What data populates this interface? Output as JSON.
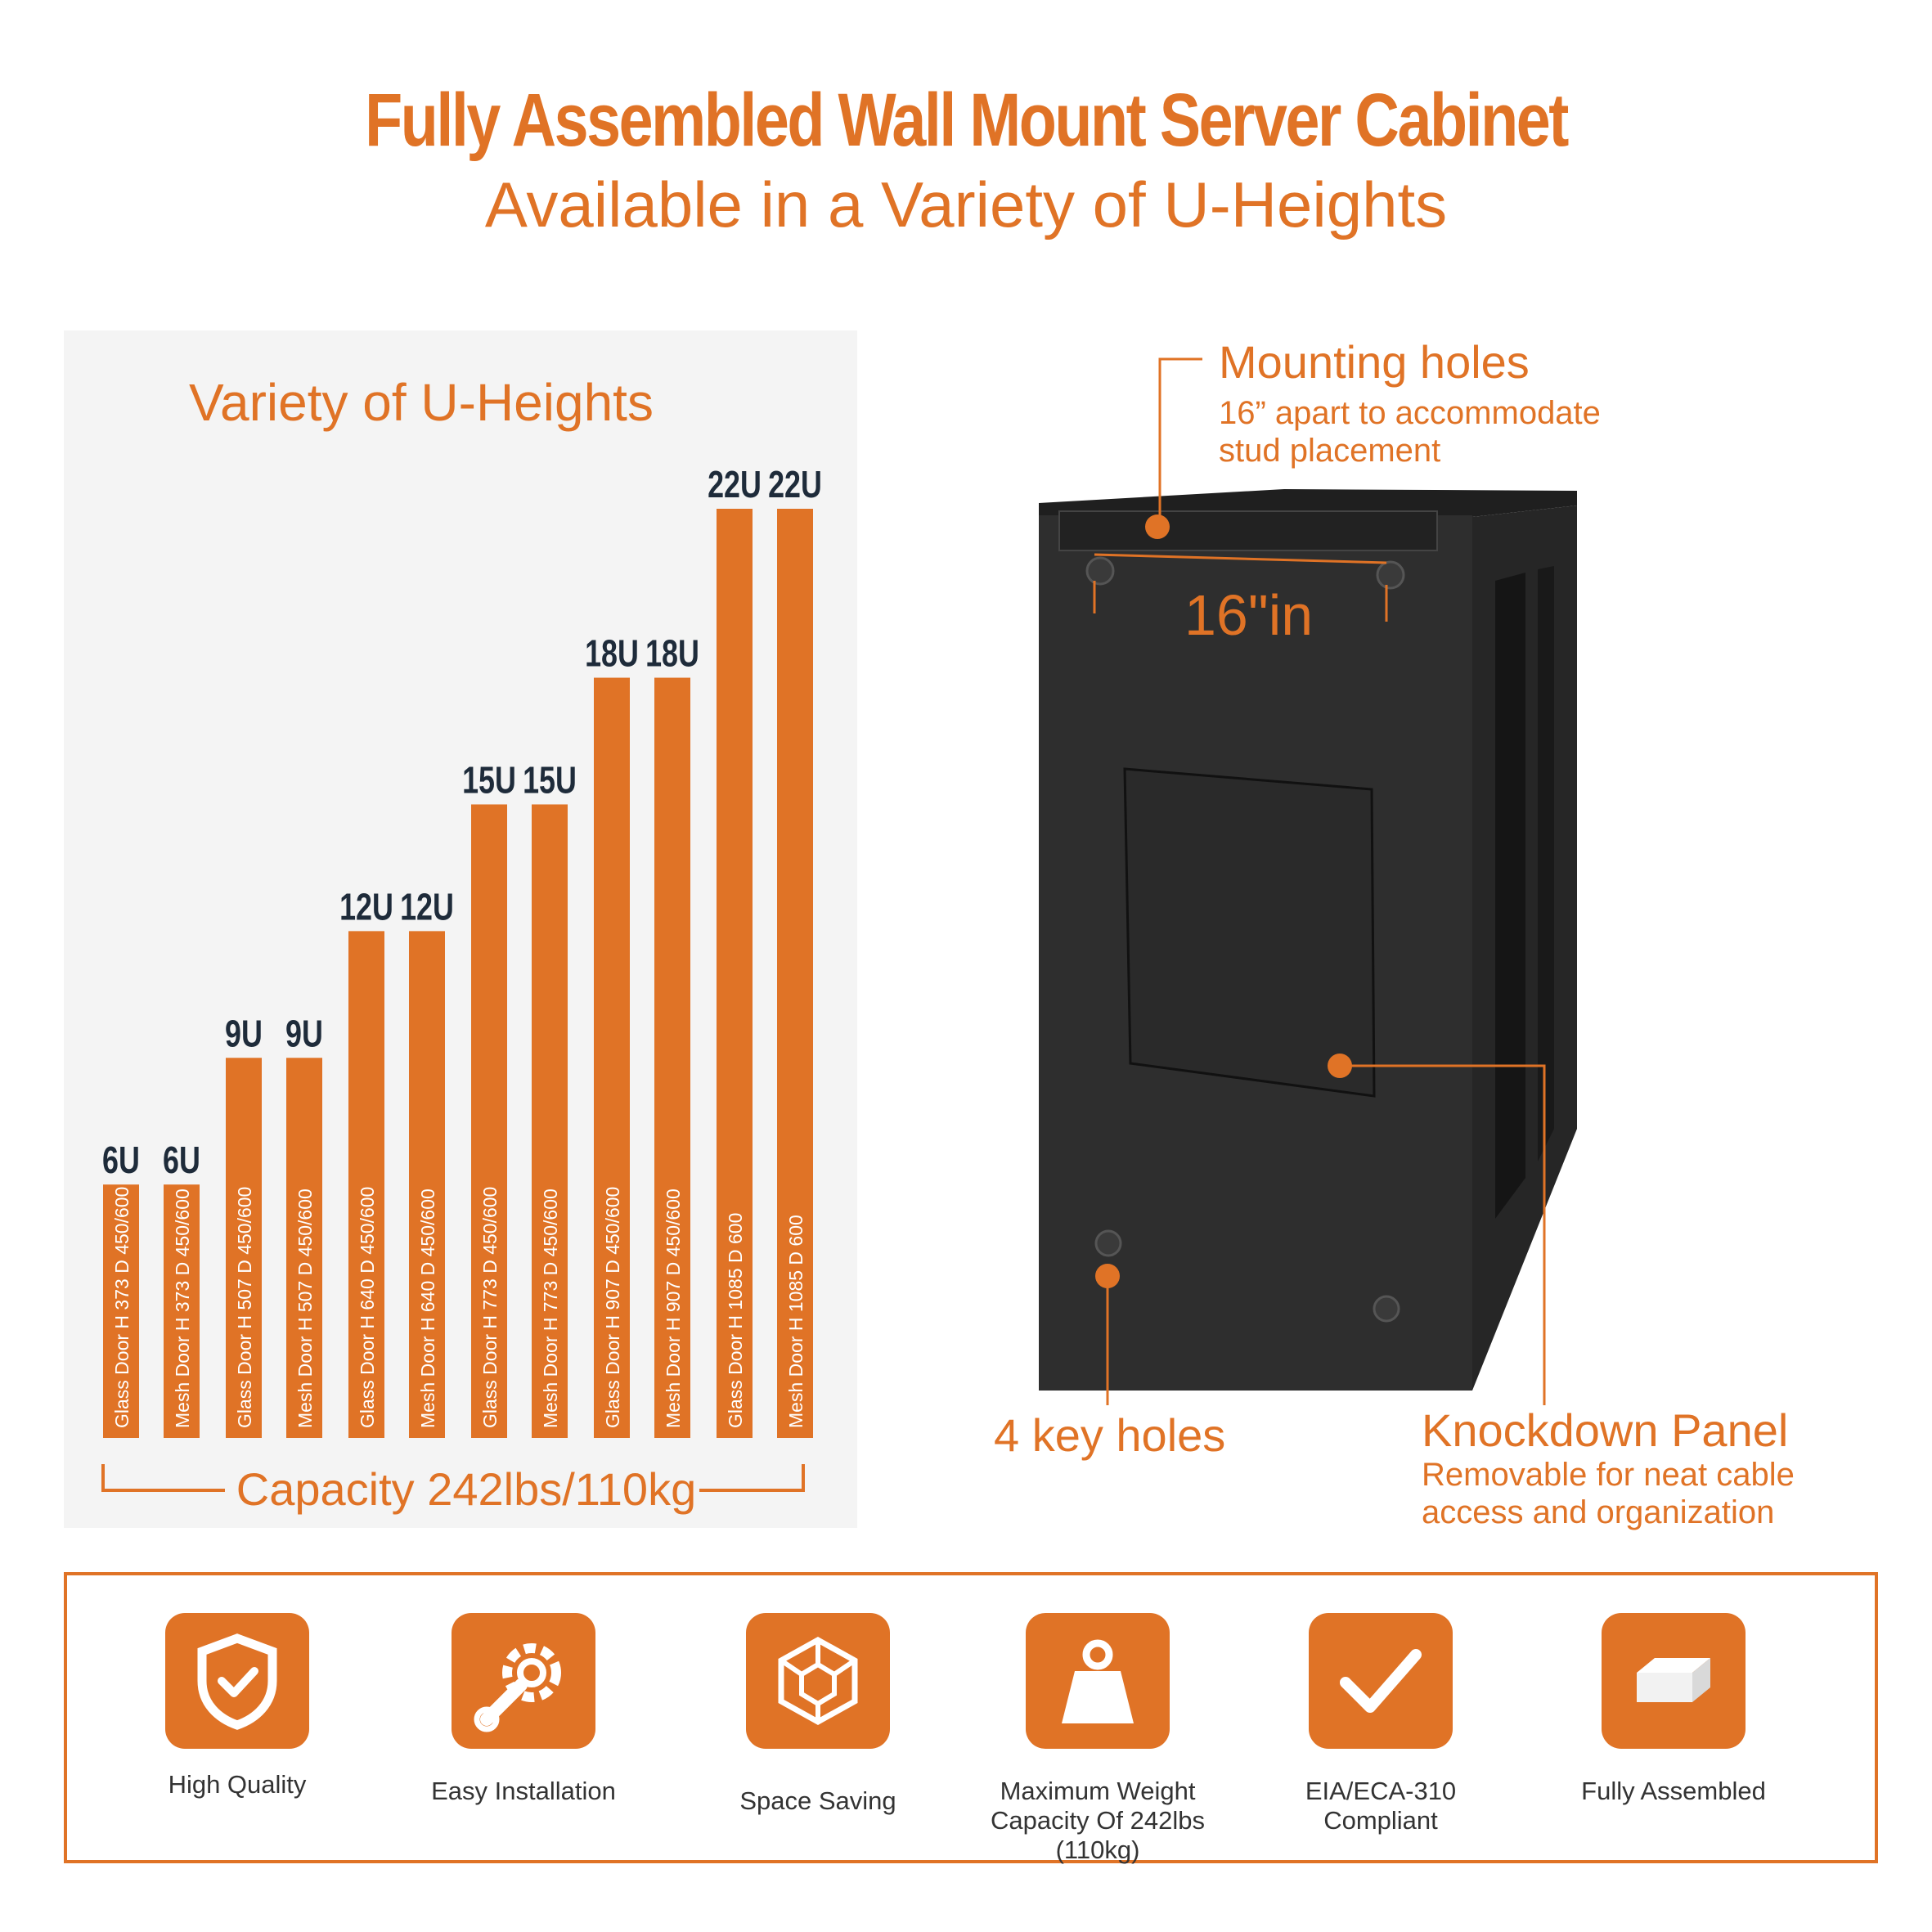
{
  "header": {
    "title": "Fully Assembled Wall Mount Server Cabinet",
    "subtitle": "Available in a Variety of U-Heights"
  },
  "colors": {
    "accent": "#e07326",
    "label_dark": "#1e2b3a",
    "cabinet": "#2c2c2c",
    "panel_bg": "#f4f4f4"
  },
  "chart_data": {
    "type": "bar",
    "title": "Variety of U-Heights",
    "value_unit": "U",
    "categories": [
      "6U",
      "6U",
      "9U",
      "9U",
      "12U",
      "12U",
      "15U",
      "15U",
      "18U",
      "18U",
      "22U",
      "22U"
    ],
    "values": [
      6,
      6,
      9,
      9,
      12,
      12,
      15,
      15,
      18,
      18,
      22,
      22
    ],
    "bar_labels": [
      "Glass Door   H 373  D 450/600",
      "Mesh Door   H 373  D 450/600",
      "Glass Door   H 507  D 450/600",
      "Mesh Door   H 507  D 450/600",
      "Glass Door   H 640  D 450/600",
      "Mesh Door   H 640  D 450/600",
      "Glass Door   H 773  D 450/600",
      "Mesh Door   H 773  D 450/600",
      "Glass Door   H 907  D 450/600",
      "Mesh Door   H 907  D 450/600",
      "Glass Door   H 1085   D 600",
      "Mesh Door   H 1085   D 600"
    ],
    "xlabel": "Capacity 242lbs/110kg",
    "ylabel": "",
    "ylim": [
      0,
      22
    ]
  },
  "callouts": {
    "mounting": {
      "title": "Mounting holes",
      "sub1": "16” apart to accommodate",
      "sub2": "stud placement"
    },
    "dimension": "16\"in",
    "keyholes": {
      "title": "4 key holes"
    },
    "knockdown": {
      "title": "Knockdown Panel",
      "sub1": "Removable for neat cable",
      "sub2": "access and organization"
    }
  },
  "features": [
    {
      "label": "High Quality",
      "icon": "shield-check-icon"
    },
    {
      "label": "Easy Installation",
      "icon": "wrench-gear-icon"
    },
    {
      "label": "Space Saving",
      "icon": "cube-icon"
    },
    {
      "label": "Maximum Weight\nCapacity Of 242lbs (110kg)",
      "icon": "weight-icon"
    },
    {
      "label": "EIA/ECA-310\nCompliant",
      "icon": "checkmark-icon"
    },
    {
      "label": "Fully Assembled",
      "icon": "box-icon"
    }
  ]
}
